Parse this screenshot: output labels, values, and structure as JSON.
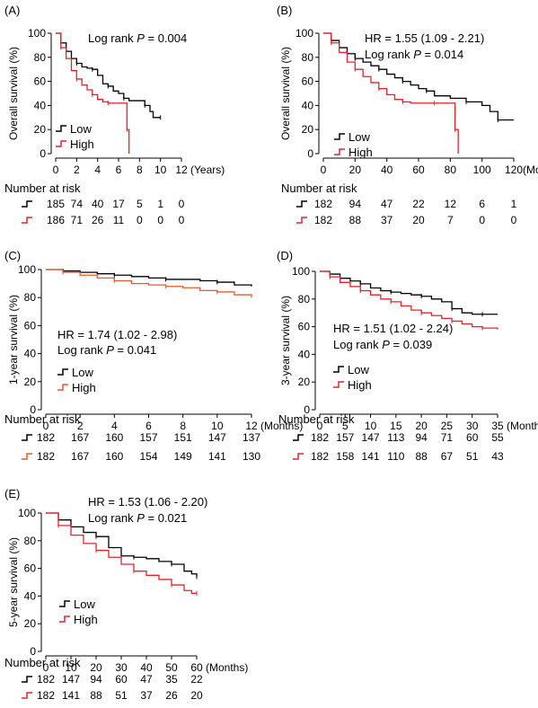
{
  "colors": {
    "low": "#000000",
    "high_red": "#e3242b",
    "high_orange": "#ea5a2c",
    "axis": "#000000"
  },
  "chart_data": [
    {
      "id": "A",
      "type": "line",
      "panel_label": "(A)",
      "xlabel": "(Years)",
      "ylabel": "Overall survival (%)",
      "xlim": [
        0,
        12
      ],
      "ylim": [
        0,
        100
      ],
      "xticks": [
        "0",
        "2",
        "4",
        "6",
        "8",
        "10",
        "12"
      ],
      "yticks": [
        "0",
        "20",
        "40",
        "60",
        "80",
        "100"
      ],
      "annotations": [
        "Log rank P = 0.004"
      ],
      "series": [
        {
          "name": "Low",
          "color": "#000000",
          "points": [
            [
              0,
              100
            ],
            [
              0.5,
              92
            ],
            [
              1,
              85
            ],
            [
              1.5,
              79
            ],
            [
              2,
              75
            ],
            [
              2.5,
              72
            ],
            [
              3,
              71
            ],
            [
              3.5,
              70
            ],
            [
              4,
              65
            ],
            [
              4.5,
              58
            ],
            [
              5,
              56
            ],
            [
              5.5,
              52
            ],
            [
              6,
              50
            ],
            [
              6.5,
              46
            ],
            [
              7,
              44
            ],
            [
              8,
              44
            ],
            [
              8.5,
              40
            ],
            [
              9,
              35
            ],
            [
              9.3,
              30
            ],
            [
              10,
              30
            ]
          ]
        },
        {
          "name": "High",
          "color": "#e3242b",
          "points": [
            [
              0,
              100
            ],
            [
              0.5,
              88
            ],
            [
              1,
              79
            ],
            [
              1.5,
              69
            ],
            [
              2,
              62
            ],
            [
              2.5,
              57
            ],
            [
              3,
              53
            ],
            [
              3.5,
              49
            ],
            [
              4,
              45
            ],
            [
              4.5,
              43
            ],
            [
              5,
              42
            ],
            [
              6,
              42
            ],
            [
              6.8,
              42
            ],
            [
              6.8,
              20
            ],
            [
              7,
              0
            ]
          ]
        }
      ],
      "risk_title": "Number at risk",
      "risk": [
        {
          "name": "Low",
          "values": [
            "185",
            "74",
            "40",
            "17",
            "5",
            "1",
            "0"
          ]
        },
        {
          "name": "High",
          "values": [
            "186",
            "71",
            "26",
            "11",
            "0",
            "0",
            "0"
          ]
        }
      ]
    },
    {
      "id": "B",
      "type": "line",
      "panel_label": "(B)",
      "xlabel": "(Months)",
      "ylabel": "Overall survival (%)",
      "xlim": [
        0,
        120
      ],
      "ylim": [
        0,
        100
      ],
      "xticks": [
        "0",
        "20",
        "40",
        "60",
        "80",
        "100",
        "120"
      ],
      "yticks": [
        "0",
        "20",
        "40",
        "60",
        "80",
        "100"
      ],
      "annotations": [
        "HR = 1.55 (1.09 - 2.21)",
        "Log rank P = 0.014"
      ],
      "series": [
        {
          "name": "Low",
          "color": "#000000",
          "points": [
            [
              0,
              100
            ],
            [
              5,
              94
            ],
            [
              10,
              88
            ],
            [
              15,
              83
            ],
            [
              20,
              79
            ],
            [
              25,
              76
            ],
            [
              30,
              73
            ],
            [
              35,
              70
            ],
            [
              40,
              66
            ],
            [
              45,
              63
            ],
            [
              50,
              60
            ],
            [
              55,
              57
            ],
            [
              60,
              54
            ],
            [
              65,
              52
            ],
            [
              70,
              48
            ],
            [
              80,
              46
            ],
            [
              90,
              43
            ],
            [
              100,
              40
            ],
            [
              105,
              35
            ],
            [
              110,
              28
            ],
            [
              120,
              28
            ]
          ]
        },
        {
          "name": "High",
          "color": "#e3242b",
          "points": [
            [
              0,
              100
            ],
            [
              5,
              92
            ],
            [
              10,
              84
            ],
            [
              15,
              76
            ],
            [
              20,
              70
            ],
            [
              25,
              64
            ],
            [
              30,
              59
            ],
            [
              35,
              54
            ],
            [
              40,
              49
            ],
            [
              45,
              45
            ],
            [
              50,
              43
            ],
            [
              55,
              42
            ],
            [
              60,
              42
            ],
            [
              70,
              42
            ],
            [
              80,
              42
            ],
            [
              83,
              42
            ],
            [
              83,
              20
            ],
            [
              85,
              0
            ]
          ]
        }
      ],
      "risk_title": "Number at risk",
      "risk": [
        {
          "name": "Low",
          "values": [
            "182",
            "94",
            "47",
            "22",
            "12",
            "6",
            "1"
          ]
        },
        {
          "name": "High",
          "values": [
            "182",
            "88",
            "37",
            "20",
            "7",
            "0",
            "0"
          ]
        }
      ]
    },
    {
      "id": "C",
      "type": "line",
      "panel_label": "(C)",
      "xlabel": "(Months)",
      "ylabel": "1-year survival (%)",
      "xlim": [
        0,
        12
      ],
      "ylim": [
        0,
        100
      ],
      "xticks": [
        "0",
        "2",
        "4",
        "6",
        "8",
        "10",
        "12"
      ],
      "yticks": [
        "0",
        "20",
        "40",
        "60",
        "80",
        "100"
      ],
      "annotations": [
        "HR = 1.74 (1.02 - 2.98)",
        "Log rank P = 0.041"
      ],
      "series": [
        {
          "name": "Low",
          "color": "#000000",
          "points": [
            [
              0,
              100
            ],
            [
              1,
              99
            ],
            [
              2,
              98
            ],
            [
              3,
              97
            ],
            [
              4,
              96
            ],
            [
              5,
              95
            ],
            [
              6,
              94
            ],
            [
              7,
              93
            ],
            [
              8,
              93
            ],
            [
              9,
              92
            ],
            [
              10,
              91
            ],
            [
              11,
              89
            ],
            [
              12,
              88
            ]
          ]
        },
        {
          "name": "High",
          "color": "#ea5a2c",
          "points": [
            [
              0,
              100
            ],
            [
              1,
              98
            ],
            [
              2,
              96
            ],
            [
              3,
              94
            ],
            [
              4,
              92
            ],
            [
              5,
              90
            ],
            [
              6,
              89
            ],
            [
              7,
              88
            ],
            [
              8,
              87
            ],
            [
              9,
              85
            ],
            [
              10,
              84
            ],
            [
              11,
              82
            ],
            [
              12,
              80
            ]
          ]
        }
      ],
      "risk_title": "Number at risk",
      "risk": [
        {
          "name": "Low",
          "values": [
            "182",
            "167",
            "160",
            "157",
            "151",
            "147",
            "137"
          ]
        },
        {
          "name": "High",
          "values": [
            "182",
            "167",
            "160",
            "154",
            "149",
            "141",
            "130"
          ]
        }
      ]
    },
    {
      "id": "D",
      "type": "line",
      "panel_label": "(D)",
      "xlabel": "(Months)",
      "ylabel": "3-year survival (%)",
      "xlim": [
        0,
        35
      ],
      "ylim": [
        0,
        100
      ],
      "xticks": [
        "0",
        "5",
        "10",
        "15",
        "20",
        "25",
        "30",
        "35"
      ],
      "yticks": [
        "0",
        "20",
        "40",
        "60",
        "80",
        "100"
      ],
      "annotations": [
        "HR = 1.51 (1.02 - 2.24)",
        "Log rank P = 0.039"
      ],
      "series": [
        {
          "name": "Low",
          "color": "#000000",
          "points": [
            [
              0,
              100
            ],
            [
              2,
              98
            ],
            [
              4,
              95
            ],
            [
              6,
              93
            ],
            [
              8,
              91
            ],
            [
              10,
              88
            ],
            [
              12,
              86
            ],
            [
              14,
              85
            ],
            [
              16,
              84
            ],
            [
              18,
              83
            ],
            [
              20,
              82
            ],
            [
              22,
              80
            ],
            [
              24,
              78
            ],
            [
              26,
              73
            ],
            [
              28,
              70
            ],
            [
              30,
              69
            ],
            [
              32,
              69
            ],
            [
              35,
              69
            ]
          ]
        },
        {
          "name": "High",
          "color": "#e3242b",
          "points": [
            [
              0,
              100
            ],
            [
              2,
              96
            ],
            [
              4,
              92
            ],
            [
              6,
              89
            ],
            [
              8,
              86
            ],
            [
              10,
              83
            ],
            [
              12,
              80
            ],
            [
              14,
              78
            ],
            [
              16,
              75
            ],
            [
              18,
              72
            ],
            [
              20,
              70
            ],
            [
              22,
              68
            ],
            [
              24,
              66
            ],
            [
              26,
              64
            ],
            [
              28,
              62
            ],
            [
              30,
              60
            ],
            [
              32,
              59
            ],
            [
              35,
              58
            ]
          ]
        }
      ],
      "risk_title": "Number at risk",
      "risk": [
        {
          "name": "Low",
          "values": [
            "182",
            "157",
            "147",
            "113",
            "94",
            "71",
            "60",
            "55"
          ]
        },
        {
          "name": "High",
          "values": [
            "182",
            "158",
            "141",
            "110",
            "88",
            "67",
            "51",
            "43"
          ]
        }
      ]
    },
    {
      "id": "E",
      "type": "line",
      "panel_label": "(E)",
      "xlabel": "(Months)",
      "ylabel": "5-year survival (%)",
      "xlim": [
        0,
        60
      ],
      "ylim": [
        0,
        100
      ],
      "xticks": [
        "0",
        "10",
        "20",
        "30",
        "40",
        "50",
        "60"
      ],
      "yticks": [
        "0",
        "20",
        "40",
        "60",
        "80",
        "100"
      ],
      "annotations": [
        "HR = 1.53 (1.06 - 2.20)",
        "Log rank P = 0.021"
      ],
      "series": [
        {
          "name": "Low",
          "color": "#000000",
          "points": [
            [
              0,
              100
            ],
            [
              5,
              95
            ],
            [
              10,
              90
            ],
            [
              15,
              86
            ],
            [
              20,
              83
            ],
            [
              25,
              75
            ],
            [
              30,
              69
            ],
            [
              35,
              68
            ],
            [
              40,
              67
            ],
            [
              45,
              65
            ],
            [
              50,
              63
            ],
            [
              55,
              58
            ],
            [
              58,
              56
            ],
            [
              60,
              54
            ]
          ]
        },
        {
          "name": "High",
          "color": "#e3242b",
          "points": [
            [
              0,
              100
            ],
            [
              5,
              91
            ],
            [
              10,
              84
            ],
            [
              15,
              78
            ],
            [
              20,
              73
            ],
            [
              25,
              68
            ],
            [
              30,
              63
            ],
            [
              35,
              58
            ],
            [
              40,
              55
            ],
            [
              45,
              52
            ],
            [
              50,
              48
            ],
            [
              55,
              44
            ],
            [
              58,
              42
            ],
            [
              60,
              42
            ]
          ]
        }
      ],
      "risk_title": "Number at risk",
      "risk": [
        {
          "name": "Low",
          "values": [
            "182",
            "147",
            "94",
            "60",
            "47",
            "35",
            "22"
          ]
        },
        {
          "name": "High",
          "values": [
            "182",
            "141",
            "88",
            "51",
            "37",
            "26",
            "20"
          ]
        }
      ]
    }
  ]
}
